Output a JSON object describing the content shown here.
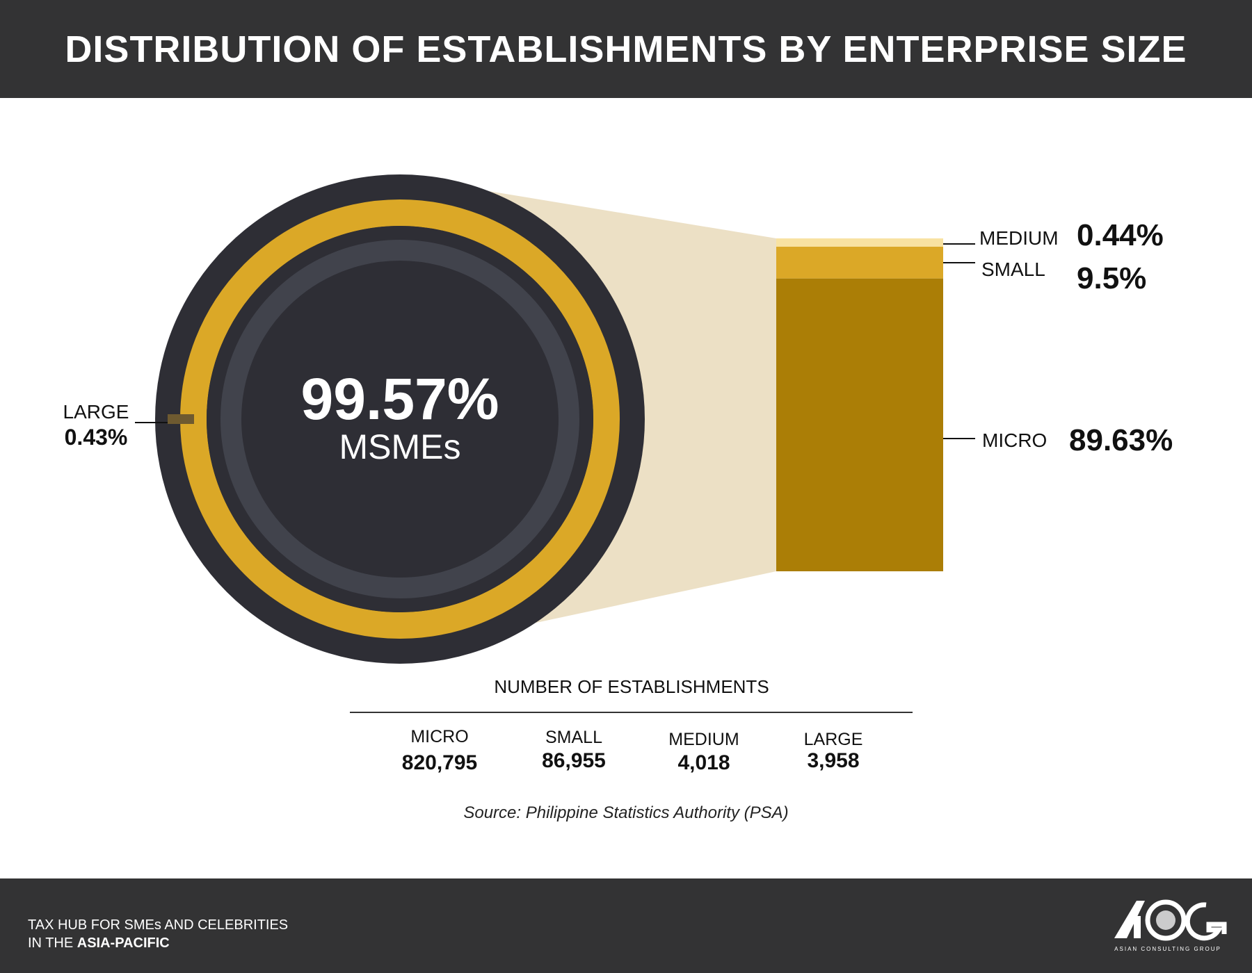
{
  "header": {
    "title": "DISTRIBUTION OF ESTABLISHMENTS BY ENTERPRISE SIZE"
  },
  "chart_data": {
    "type": "pie",
    "title": "DISTRIBUTION OF ESTABLISHMENTS BY ENTERPRISE SIZE",
    "center_value": "99.57%",
    "center_label": "MSMEs",
    "ring": [
      {
        "label": "MSMEs",
        "value": 99.57,
        "color": "#dba827"
      },
      {
        "label": "LARGE",
        "value": 0.43,
        "display": "0.43%",
        "color": "#6e5a30"
      }
    ],
    "breakdown": [
      {
        "label": "MEDIUM",
        "value": 0.44,
        "display": "0.44%",
        "color": "#f8e2a2"
      },
      {
        "label": "SMALL",
        "value": 9.5,
        "display": "9.5%",
        "color": "#dba827"
      },
      {
        "label": "MICRO",
        "value": 89.63,
        "display": "89.63%",
        "color": "#ab7e06"
      }
    ],
    "table": {
      "title": "NUMBER OF ESTABLISHMENTS",
      "columns": [
        {
          "label": "MICRO",
          "value": "820,795"
        },
        {
          "label": "SMALL",
          "value": "86,955"
        },
        {
          "label": "MEDIUM",
          "value": "4,018"
        },
        {
          "label": "LARGE",
          "value": "3,958"
        }
      ]
    },
    "source": "Source: Philippine Statistics Authority (PSA)"
  },
  "colors": {
    "dark": "#2e2e35",
    "ring_inner": "#41434c",
    "funnel": "#ece0c5",
    "header_bg": "#333334"
  },
  "footer": {
    "tagline_line1": "TAX HUB FOR SMEs AND CELEBRITIES",
    "tagline_line2_prefix": "IN THE ",
    "tagline_line2_bold": "ASIA-PACIFIC",
    "logo_text": "ASIAN CONSULTING GROUP"
  }
}
